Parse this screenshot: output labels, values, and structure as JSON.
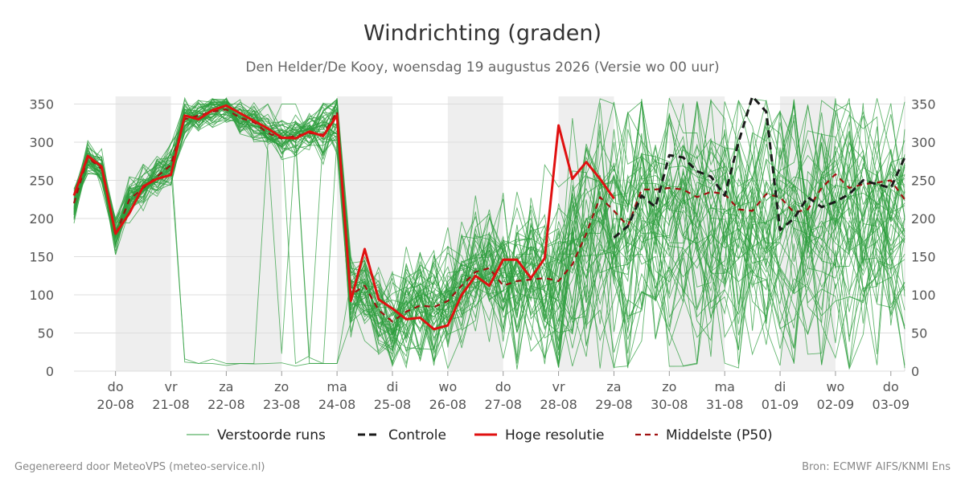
{
  "title": "Windrichting (graden)",
  "subtitle": "Den Helder/De Kooy, woensdag 19 augustus 2026 (Versie wo 00 uur)",
  "footer_left": "Gegenereerd door MeteoVPS (meteo-service.nl)",
  "footer_right": "Bron: ECMWF AIFS/KNMI Ens",
  "colors": {
    "ensemble": "#2e9e3e",
    "control": "#1a1a1a",
    "high_res": "#e01010",
    "median": "#a01010",
    "night_band": "#eeeeee",
    "grid": "#dddddd"
  },
  "chart_data": {
    "type": "line",
    "xlim": [
      0,
      15
    ],
    "ylim": [
      0,
      360
    ],
    "yticks": [
      0,
      50,
      100,
      150,
      200,
      250,
      300,
      350
    ],
    "x_unit": "days from 19-08-2026 00 uur",
    "xticks": [
      {
        "x": 0.75,
        "day": "do",
        "date": "20-08"
      },
      {
        "x": 1.75,
        "day": "vr",
        "date": "21-08"
      },
      {
        "x": 2.75,
        "day": "za",
        "date": "22-08"
      },
      {
        "x": 3.75,
        "day": "zo",
        "date": "23-08"
      },
      {
        "x": 4.75,
        "day": "ma",
        "date": "24-08"
      },
      {
        "x": 5.75,
        "day": "di",
        "date": "25-08"
      },
      {
        "x": 6.75,
        "day": "wo",
        "date": "26-08"
      },
      {
        "x": 7.75,
        "day": "do",
        "date": "27-08"
      },
      {
        "x": 8.75,
        "day": "vr",
        "date": "28-08"
      },
      {
        "x": 9.75,
        "day": "za",
        "date": "29-08"
      },
      {
        "x": 10.75,
        "day": "zo",
        "date": "30-08"
      },
      {
        "x": 11.75,
        "day": "ma",
        "date": "31-08"
      },
      {
        "x": 12.75,
        "day": "di",
        "date": "01-09"
      },
      {
        "x": 13.75,
        "day": "wo",
        "date": "02-09"
      },
      {
        "x": 14.75,
        "day": "do",
        "date": "03-09"
      }
    ],
    "night_bands": [
      [
        0.75,
        1.75
      ],
      [
        2.75,
        3.75
      ],
      [
        4.75,
        5.75
      ],
      [
        6.75,
        7.75
      ],
      [
        8.75,
        9.75
      ],
      [
        10.75,
        11.75
      ],
      [
        12.75,
        13.75
      ]
    ],
    "legend": [
      {
        "key": "ensemble",
        "label": "Verstoorde runs",
        "style": "thin"
      },
      {
        "key": "control",
        "label": "Controle",
        "style": "dashed-bold"
      },
      {
        "key": "high_res",
        "label": "Hoge resolutie",
        "style": "bold"
      },
      {
        "key": "median",
        "label": "Middelste (P50)",
        "style": "dashed"
      }
    ],
    "legend_position": "bottom",
    "grid": true,
    "series": [
      {
        "name": "Hoge resolutie",
        "key": "high_res",
        "x": [
          0,
          0.25,
          0.5,
          0.75,
          1,
          1.25,
          1.5,
          1.75,
          2,
          2.25,
          2.5,
          2.75,
          3,
          3.25,
          3.5,
          3.75,
          4,
          4.25,
          4.5,
          4.75,
          5,
          5.25,
          5.5,
          5.75,
          6,
          6.25,
          6.5,
          6.75,
          7,
          7.25,
          7.5,
          7.75,
          8,
          8.25,
          8.5,
          8.75,
          9,
          9.25,
          9.5,
          9.75
        ],
        "y": [
          230,
          282,
          268,
          180,
          207,
          242,
          252,
          257,
          335,
          330,
          342,
          348,
          338,
          328,
          318,
          306,
          305,
          314,
          308,
          335,
          92,
          160,
          94,
          82,
          68,
          70,
          55,
          60,
          100,
          125,
          112,
          146,
          146,
          122,
          148,
          322,
          252,
          274,
          252,
          226
        ]
      },
      {
        "name": "Controle",
        "key": "control",
        "x": [
          9.75,
          10,
          10.25,
          10.5,
          10.75,
          11,
          11.25,
          11.5,
          11.75,
          12,
          12.25,
          12.5,
          12.75,
          13,
          13.25,
          13.5,
          13.75,
          14,
          14.25,
          14.5,
          14.75,
          15
        ],
        "y": [
          175,
          190,
          230,
          215,
          283,
          280,
          262,
          255,
          230,
          300,
          360,
          340,
          185,
          200,
          228,
          215,
          222,
          232,
          250,
          245,
          240,
          280
        ]
      },
      {
        "name": "Middelste (P50)",
        "key": "median",
        "x": [
          0,
          0.25,
          0.5,
          0.75,
          1,
          1.25,
          1.5,
          1.75,
          2,
          2.25,
          2.5,
          2.75,
          3,
          3.25,
          3.5,
          3.75,
          4,
          4.25,
          4.5,
          4.75,
          5,
          5.25,
          5.5,
          5.75,
          6,
          6.25,
          6.5,
          6.75,
          7,
          7.25,
          7.5,
          7.75,
          8,
          8.25,
          8.5,
          8.75,
          9,
          9.25,
          9.5,
          9.75,
          10,
          10.25,
          10.5,
          10.75,
          11,
          11.25,
          11.5,
          11.75,
          12,
          12.25,
          12.5,
          12.75,
          13,
          13.25,
          13.5,
          13.75,
          14,
          14.25,
          14.5,
          14.75,
          15
        ],
        "y": [
          220,
          280,
          265,
          178,
          225,
          240,
          255,
          270,
          330,
          335,
          340,
          343,
          332,
          326,
          312,
          305,
          308,
          312,
          310,
          340,
          100,
          112,
          80,
          65,
          78,
          86,
          84,
          92,
          112,
          130,
          135,
          112,
          118,
          120,
          122,
          118,
          140,
          180,
          228,
          210,
          190,
          238,
          238,
          240,
          238,
          228,
          235,
          232,
          212,
          210,
          232,
          228,
          208,
          212,
          240,
          258,
          240,
          245,
          247,
          250,
          225
        ]
      }
    ],
    "ensemble": {
      "name": "Verstoorde runs",
      "key": "ensemble",
      "members": 50,
      "x_step": 0.25,
      "range": [
        0,
        360
      ]
    }
  }
}
